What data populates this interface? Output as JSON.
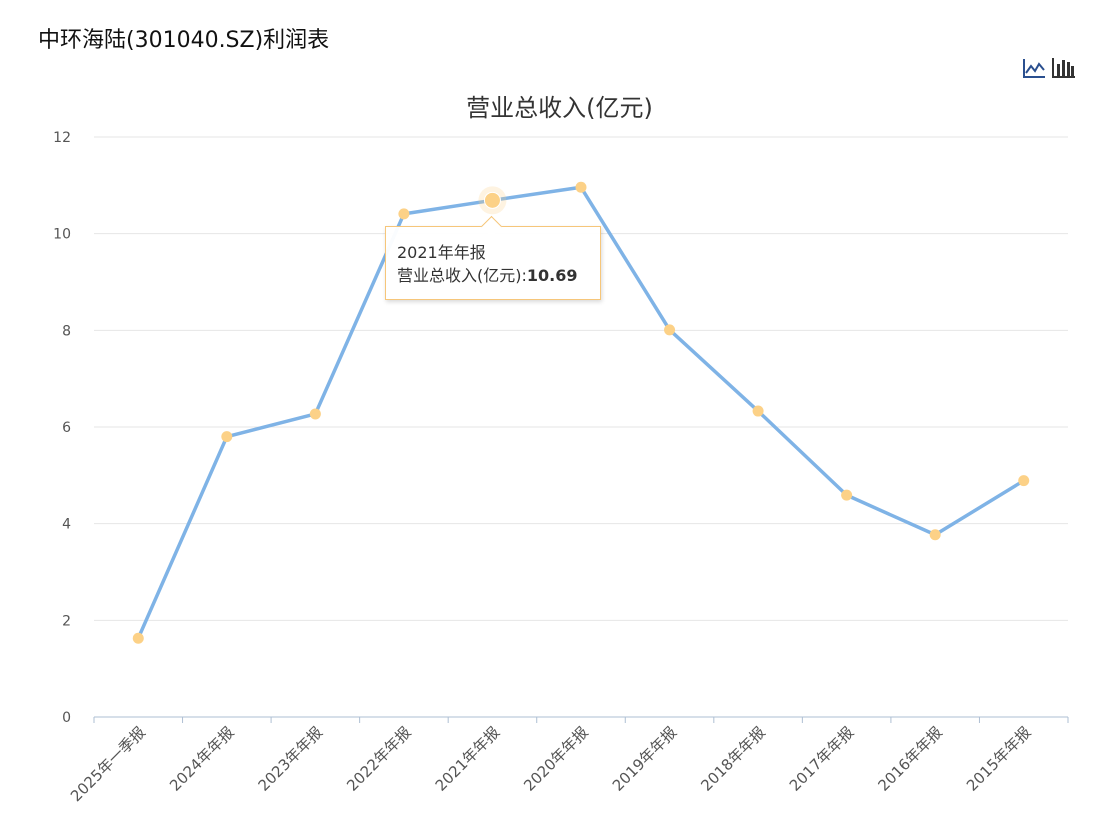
{
  "page": {
    "title": "中环海陆(301040.SZ)利润表"
  },
  "toolbar": {
    "line_icon": "line-chart-icon",
    "bar_icon": "bar-chart-icon"
  },
  "colors": {
    "line": "#7fb3e6",
    "point": "#fcd187",
    "grid": "#e6e6e6",
    "axis": "#aebfd3"
  },
  "chart_data": {
    "type": "line",
    "title": "营业总收入(亿元)",
    "categories": [
      "2025年一季报",
      "2024年年报",
      "2023年年报",
      "2022年年报",
      "2021年年报",
      "2020年年报",
      "2019年年报",
      "2018年年报",
      "2017年年报",
      "2016年年报",
      "2015年年报"
    ],
    "series": [
      {
        "name": "营业总收入(亿元)",
        "values": [
          1.63,
          5.8,
          6.27,
          10.41,
          10.69,
          10.96,
          8.01,
          6.33,
          4.59,
          3.77,
          4.89
        ]
      }
    ],
    "ylim": [
      0,
      12
    ],
    "yticks": [
      0,
      2,
      4,
      6,
      8,
      10,
      12
    ],
    "grid": true
  },
  "tooltip": {
    "category": "2021年年报",
    "series_label": "营业总收入(亿元):",
    "value": "10.69"
  }
}
